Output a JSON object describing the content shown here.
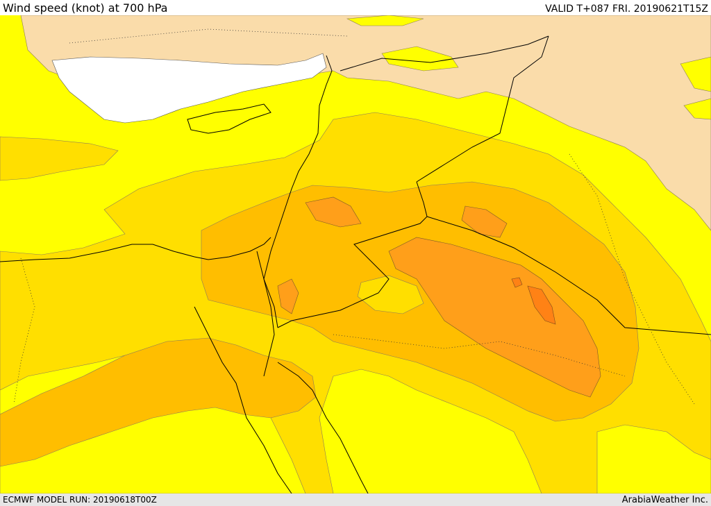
{
  "header": {
    "title": "Wind speed (knot) at 700 hPa",
    "valid": "VALID T+087 FRI. 20190621T15Z"
  },
  "footer": {
    "model_run": "ECMWF MODEL RUN: 20190618T00Z",
    "credit": "ArabiaWeather Inc."
  },
  "colors": {
    "land_low": "#fadcaa",
    "sea": "#ffffff",
    "band_1": "#ffff00",
    "band_2": "#ffdf00",
    "band_3": "#ffbe00",
    "band_4": "#ff9f1a",
    "band_5": "#ff8215"
  }
}
